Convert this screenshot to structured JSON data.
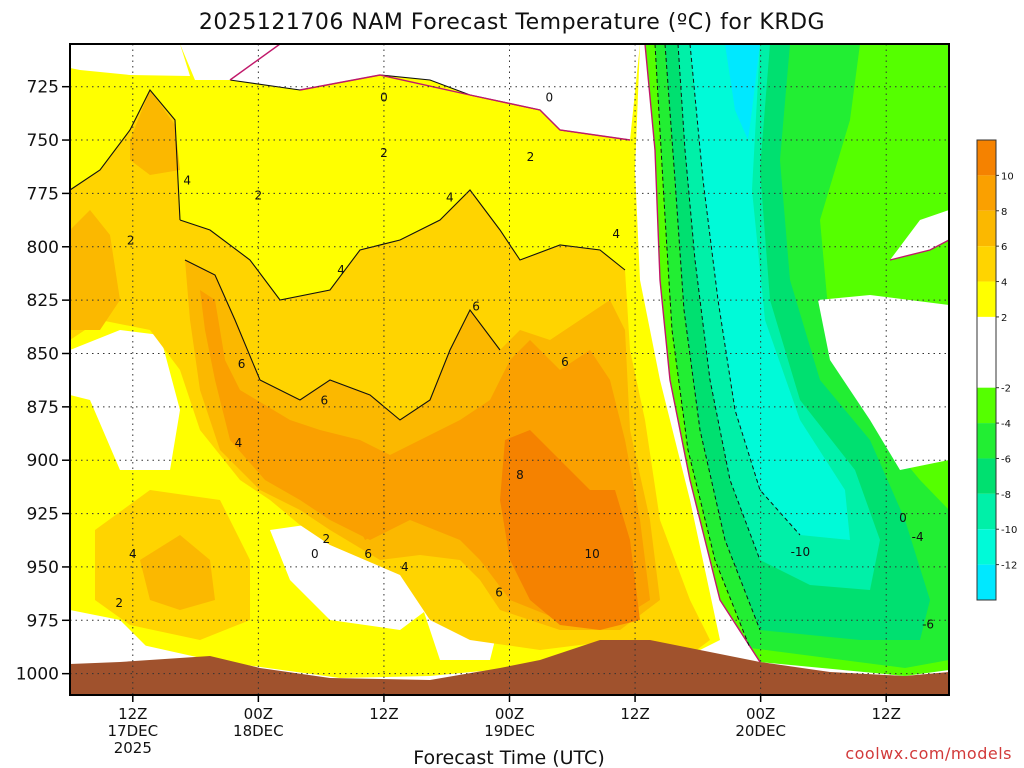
{
  "chart_data": {
    "type": "heatmap",
    "title": "2025121706 NAM Forecast Temperature (ºC) for KRDG",
    "xlabel": "Forecast Time (UTC)",
    "ylabel": "",
    "y_ticks": [
      "725",
      "750",
      "775",
      "800",
      "825",
      "850",
      "875",
      "900",
      "925",
      "950",
      "975",
      "1000"
    ],
    "y_range": [
      705,
      1010
    ],
    "x_ticks": [
      {
        "hour": 6,
        "line1": "12Z",
        "line2": "17DEC",
        "line3": "2025"
      },
      {
        "hour": 18,
        "line1": "00Z",
        "line2": "18DEC",
        "line3": ""
      },
      {
        "hour": 30,
        "line1": "12Z",
        "line2": "",
        "line3": ""
      },
      {
        "hour": 42,
        "line1": "00Z",
        "line2": "19DEC",
        "line3": ""
      },
      {
        "hour": 54,
        "line1": "12Z",
        "line2": "",
        "line3": ""
      },
      {
        "hour": 66,
        "line1": "00Z",
        "line2": "20DEC",
        "line3": ""
      },
      {
        "hour": 78,
        "line1": "12Z",
        "line2": "",
        "line3": ""
      }
    ],
    "x_range": [
      0,
      84
    ],
    "colorbar": {
      "labels": [
        "10",
        "8",
        "6",
        "4",
        "2",
        "-2",
        "-4",
        "-6",
        "-8",
        "-10",
        "-12"
      ],
      "bands": [
        {
          "lo": 10,
          "hi": 12,
          "color": "#f58200"
        },
        {
          "lo": 8,
          "hi": 10,
          "color": "#faa000"
        },
        {
          "lo": 6,
          "hi": 8,
          "color": "#fbb800"
        },
        {
          "lo": 4,
          "hi": 6,
          "color": "#ffd400"
        },
        {
          "lo": 2,
          "hi": 4,
          "color": "#ffff00"
        },
        {
          "lo": -2,
          "hi": 2,
          "color": "#ffffff"
        },
        {
          "lo": -4,
          "hi": -2,
          "color": "#55ff00"
        },
        {
          "lo": -6,
          "hi": -4,
          "color": "#22ee33"
        },
        {
          "lo": -8,
          "hi": -6,
          "color": "#00e070"
        },
        {
          "lo": -10,
          "hi": -8,
          "color": "#00f0a8"
        },
        {
          "lo": -12,
          "hi": -10,
          "color": "#00fad8"
        },
        {
          "lo": -14,
          "hi": -12,
          "color": "#00e8ff"
        }
      ]
    },
    "contour_labels": [
      {
        "text": "0",
        "hour": 30.0,
        "p": 730
      },
      {
        "text": "0",
        "hour": 45.8,
        "p": 730
      },
      {
        "text": "2",
        "hour": 30.0,
        "p": 756
      },
      {
        "text": "2",
        "hour": 44.0,
        "p": 758
      },
      {
        "text": "4",
        "hour": 11.2,
        "p": 769
      },
      {
        "text": "2",
        "hour": 18.0,
        "p": 776
      },
      {
        "text": "4",
        "hour": 36.3,
        "p": 777
      },
      {
        "text": "4",
        "hour": 52.2,
        "p": 794
      },
      {
        "text": "2",
        "hour": 5.8,
        "p": 797
      },
      {
        "text": "4",
        "hour": 25.9,
        "p": 811
      },
      {
        "text": "6",
        "hour": 38.8,
        "p": 828
      },
      {
        "text": "6",
        "hour": 47.3,
        "p": 854
      },
      {
        "text": "6",
        "hour": 16.4,
        "p": 855
      },
      {
        "text": "6",
        "hour": 24.3,
        "p": 872
      },
      {
        "text": "4",
        "hour": 16.1,
        "p": 892
      },
      {
        "text": "8",
        "hour": 43.0,
        "p": 907
      },
      {
        "text": "-10",
        "hour": 69.8,
        "p": 943
      },
      {
        "text": "-4",
        "hour": 81.0,
        "p": 936
      },
      {
        "text": "0",
        "hour": 79.6,
        "p": 927
      },
      {
        "text": "2",
        "hour": 24.5,
        "p": 937
      },
      {
        "text": "0",
        "hour": 23.4,
        "p": 944
      },
      {
        "text": "6",
        "hour": 28.5,
        "p": 944
      },
      {
        "text": "4",
        "hour": 32.0,
        "p": 950
      },
      {
        "text": "10",
        "hour": 49.9,
        "p": 944
      },
      {
        "text": "4",
        "hour": 6.0,
        "p": 944
      },
      {
        "text": "6",
        "hour": 41.0,
        "p": 962
      },
      {
        "text": "2",
        "hour": 4.7,
        "p": 967
      },
      {
        "text": "-6",
        "hour": 82.0,
        "p": 977
      }
    ]
  },
  "credit": "coolwx.com/models"
}
